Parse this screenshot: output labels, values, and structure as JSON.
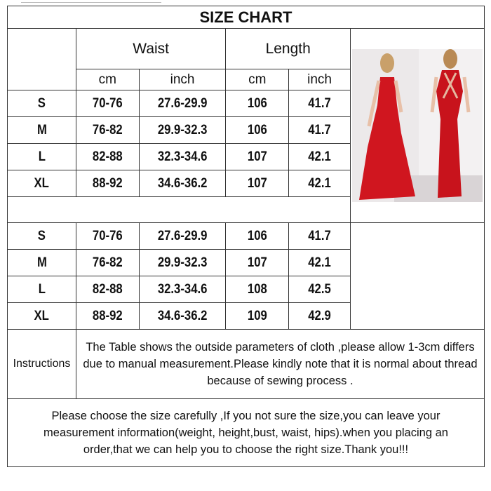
{
  "title": "SIZE CHART",
  "headers": {
    "waist": "Waist",
    "length": "Length"
  },
  "units": [
    "cm",
    "inch",
    "cm",
    "inch"
  ],
  "table1": [
    [
      "S",
      "70-76",
      "27.6-29.9",
      "106",
      "41.7"
    ],
    [
      "M",
      "76-82",
      "29.9-32.3",
      "106",
      "41.7"
    ],
    [
      "L",
      "82-88",
      "32.3-34.6",
      "107",
      "42.1"
    ],
    [
      "XL",
      "88-92",
      "34.6-36.2",
      "107",
      "42.1"
    ]
  ],
  "table2": [
    [
      "S",
      "70-76",
      "27.6-29.9",
      "106",
      "41.7"
    ],
    [
      "M",
      "76-82",
      "29.9-32.3",
      "107",
      "42.1"
    ],
    [
      "L",
      "82-88",
      "32.3-34.6",
      "108",
      "42.5"
    ],
    [
      "XL",
      "88-92",
      "34.6-36.2",
      "109",
      "42.9"
    ]
  ],
  "instructions": {
    "label": "Instructions",
    "text": "The Table shows the outside parameters of cloth ,please allow 1-3cm differs due to manual measurement.Please kindly note that it is normal about thread because of sewing process ."
  },
  "footer": "Please choose the size carefully ,If you not sure the size,you can leave your measurement information(weight, height,bust, waist, hips).when you placing an order,that we can help you to choose the right size.Thank you!!!",
  "colors": {
    "dress": "#d0161f",
    "border": "#333333"
  }
}
